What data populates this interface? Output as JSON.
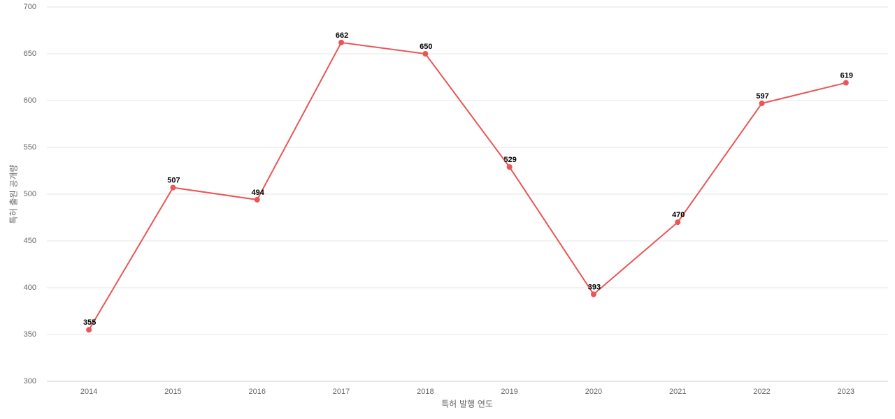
{
  "chart_data": {
    "type": "line",
    "x_label": "특허 발행 연도",
    "y_label": "특허 출원 공개량",
    "categories": [
      "2014",
      "2015",
      "2016",
      "2017",
      "2018",
      "2019",
      "2020",
      "2021",
      "2022",
      "2023"
    ],
    "series": [
      {
        "name": "특허 출원 공개량",
        "color": "#ea5555",
        "values": [
          355,
          507,
          494,
          662,
          650,
          529,
          393,
          470,
          597,
          619
        ]
      }
    ],
    "ylim": [
      300,
      700
    ],
    "yticks": [
      300,
      350,
      400,
      450,
      500,
      550,
      600,
      650,
      700
    ],
    "grid": true,
    "data_labels": true
  }
}
